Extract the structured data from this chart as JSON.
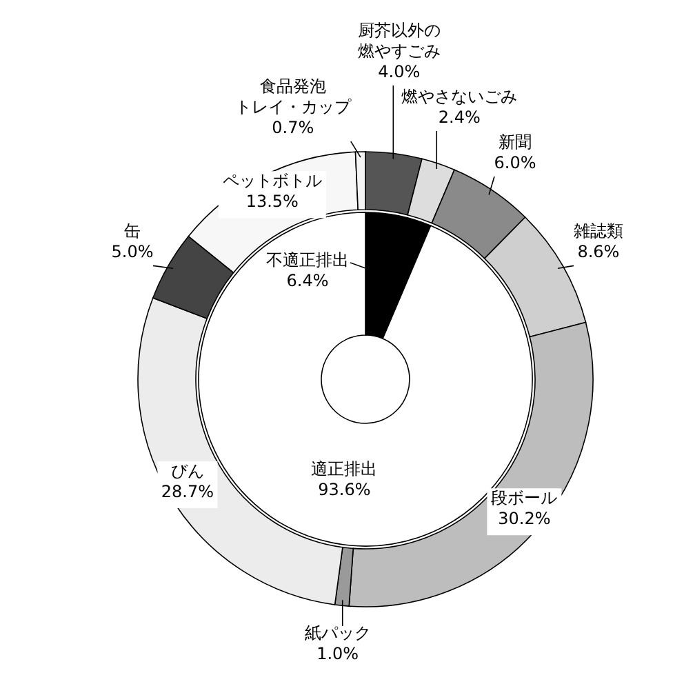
{
  "chart_data": [
    {
      "type": "donut",
      "categories": [
        "厨芥以外の燃やすごみ",
        "燃やさないごみ",
        "新聞",
        "雑誌類",
        "段ボール",
        "紙パック",
        "びん",
        "缶",
        "ペットボトル",
        "食品発泡トレイ・カップ"
      ],
      "values": [
        4.0,
        2.4,
        6.0,
        8.6,
        30.2,
        1.0,
        28.7,
        5.0,
        13.5,
        0.7
      ],
      "value_labels": [
        "4.0%",
        "2.4%",
        "6.0%",
        "8.6%",
        "30.2%",
        "1.0%",
        "28.7%",
        "5.0%",
        "13.5%",
        "0.7%"
      ],
      "colors": [
        "#555555",
        "#dddddd",
        "#8a8a8a",
        "#cfcfcf",
        "#bdbdbd",
        "#9a9a9a",
        "#ececec",
        "#444444",
        "#f7f7f7",
        "#f4f4f4"
      ]
    },
    {
      "type": "donut",
      "categories": [
        "不適正排出",
        "適正排出"
      ],
      "values": [
        6.4,
        93.6
      ],
      "value_labels": [
        "6.4%",
        "93.6%"
      ],
      "colors": [
        "#000000",
        "#ffffff"
      ]
    }
  ]
}
